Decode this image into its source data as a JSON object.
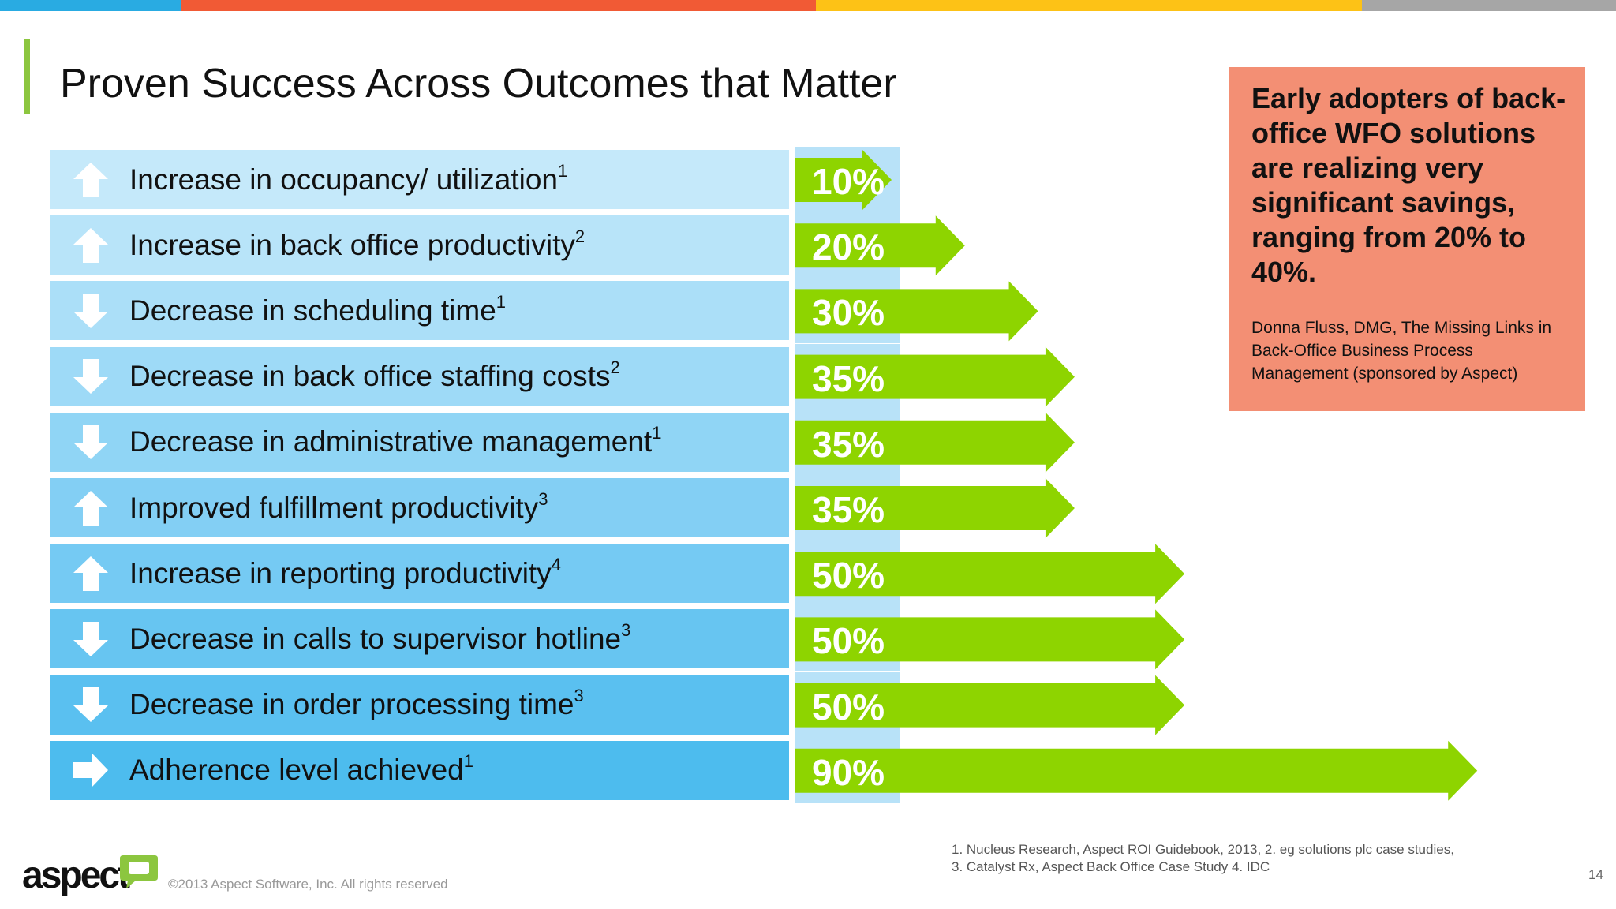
{
  "slide": {
    "title": "Proven Success Across Outcomes that Matter",
    "top_bar_colors": [
      "#29abe2",
      "#f15a35",
      "#fdc216",
      "#a6a6a6"
    ],
    "row_colors": [
      "#c5e9fa",
      "#b8e4f9",
      "#abdff8",
      "#9edaf7",
      "#90d5f5",
      "#83cff4",
      "#75caf3",
      "#67c5f1",
      "#5ac0f0",
      "#4dbcee"
    ],
    "arrow_color": "#8ed400"
  },
  "quote": {
    "text": "Early adopters of back-office WFO solutions are realizing very significant savings, ranging from 20% to 40%.",
    "source": "Donna Fluss, DMG, The Missing Links in Back-Office Business Process Management (sponsored by Aspect)"
  },
  "footer": {
    "logo_text": "aspect",
    "copyright": "©2013 Aspect Software, Inc. All rights reserved",
    "footnote_line1": "1.  Nucleus Research, Aspect ROI Guidebook, 2013,  2. eg solutions plc case studies,",
    "footnote_line2": "3. Catalyst Rx, Aspect Back Office Case Study  4. IDC",
    "page_number": "14"
  },
  "chart_data": {
    "type": "bar",
    "orientation": "horizontal",
    "xlim": [
      0,
      100
    ],
    "categories": [
      {
        "label": "Increase in occupancy/ utilization",
        "footnote": "1",
        "icon": "arrow-up-icon"
      },
      {
        "label": "Increase in back office productivity",
        "footnote": "2",
        "icon": "arrow-up-icon"
      },
      {
        "label": "Decrease in scheduling time",
        "footnote": "1",
        "icon": "arrow-down-icon"
      },
      {
        "label": "Decrease in back office staffing costs",
        "footnote": "2",
        "icon": "arrow-down-icon"
      },
      {
        "label": "Decrease in administrative management",
        "footnote": "1",
        "icon": "arrow-down-icon"
      },
      {
        "label": "Improved fulfillment productivity",
        "footnote": "3",
        "icon": "arrow-up-icon"
      },
      {
        "label": "Increase in reporting productivity",
        "footnote": "4",
        "icon": "arrow-up-icon"
      },
      {
        "label": "Decrease in calls to supervisor hotline",
        "footnote": "3",
        "icon": "arrow-down-icon"
      },
      {
        "label": "Decrease in order processing time",
        "footnote": "3",
        "icon": "arrow-down-icon"
      },
      {
        "label": "Adherence level achieved",
        "footnote": "1",
        "icon": "arrow-right-icon"
      }
    ],
    "values": [
      10,
      20,
      30,
      35,
      35,
      35,
      50,
      50,
      50,
      90
    ],
    "value_labels": [
      "10%",
      "20%",
      "30%",
      "35%",
      "35%",
      "35%",
      "50%",
      "50%",
      "50%",
      "90%"
    ]
  }
}
